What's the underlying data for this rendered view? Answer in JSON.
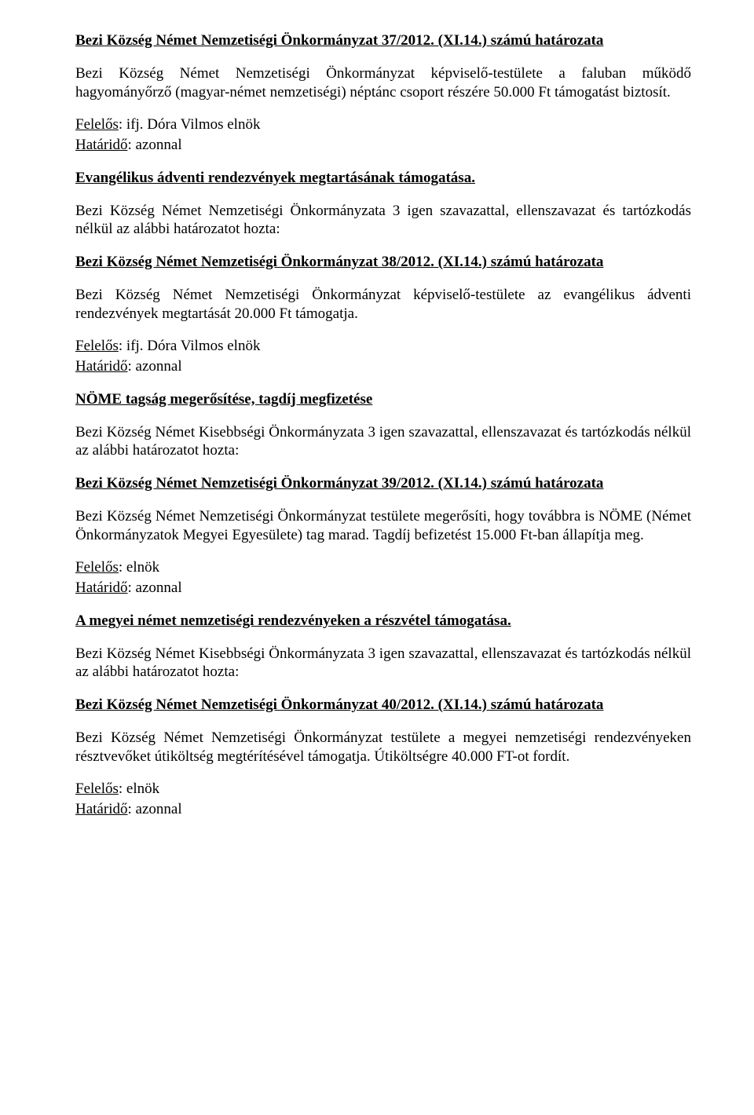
{
  "sec1": {
    "title": "Bezi Község Német Nemzetiségi Önkormányzat 37/2012. (XI.14.) számú határozata",
    "para": "Bezi Község Német Nemzetiségi Önkormányzat képviselő-testülete a faluban működő hagyományőrző (magyar-német nemzetiségi) néptánc csoport részére 50.000 Ft támogatást biztosít.",
    "responsibleLabel": "Felelős",
    "responsible": ": ifj. Dóra Vilmos elnök",
    "deadlineLabel": "Határidő",
    "deadline": ": azonnal"
  },
  "sec2": {
    "heading": "Evangélikus ádventi rendezvények megtartásának támogatása.",
    "intro": "Bezi Község Német Nemzetiségi Önkormányzata 3 igen szavazattal, ellenszavazat és tartózkodás nélkül az alábbi határozatot hozta:",
    "title": "Bezi Község Német Nemzetiségi Önkormányzat 38/2012. (XI.14.) számú határozata",
    "para": "Bezi Község Német Nemzetiségi Önkormányzat képviselő-testülete az evangélikus ádventi rendezvények megtartását 20.000 Ft támogatja.",
    "responsibleLabel": "Felelős",
    "responsible": ": ifj. Dóra Vilmos elnök",
    "deadlineLabel": "Határidő",
    "deadline": ": azonnal"
  },
  "sec3": {
    "heading": "NÖME tagság megerősítése, tagdíj megfizetése",
    "intro": "Bezi Község Német Kisebbségi Önkormányzata 3 igen szavazattal, ellenszavazat és tartózkodás nélkül az alábbi határozatot hozta:",
    "title": "Bezi Község Német Nemzetiségi Önkormányzat 39/2012. (XI.14.) számú határozata",
    "para": "Bezi Község Német Nemzetiségi Önkormányzat testülete megerősíti, hogy továbbra is NÖME (Német Önkormányzatok Megyei Egyesülete) tag marad. Tagdíj befizetést 15.000 Ft-ban állapítja meg.",
    "responsibleLabel": "Felelős",
    "responsible": ": elnök",
    "deadlineLabel": "Határidő",
    "deadline": ": azonnal"
  },
  "sec4": {
    "heading": "A megyei német nemzetiségi rendezvényeken a részvétel támogatása.",
    "intro": "Bezi Község Német Kisebbségi Önkormányzata 3 igen szavazattal, ellenszavazat és tartózkodás nélkül az alábbi határozatot hozta:",
    "title": "Bezi Község Német Nemzetiségi Önkormányzat 40/2012. (XI.14.) számú határozata",
    "para": "Bezi Község Német Nemzetiségi Önkormányzat testülete a megyei nemzetiségi rendezvényeken résztvevőket útiköltség megtérítésével támogatja. Útiköltségre 40.000 FT-ot fordít.",
    "responsibleLabel": "Felelős",
    "responsible": ": elnök",
    "deadlineLabel": "Határidő",
    "deadline": ": azonnal"
  }
}
